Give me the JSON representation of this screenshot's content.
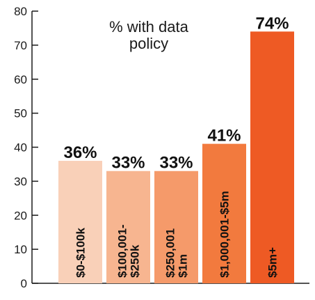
{
  "chart_data": {
    "type": "bar",
    "title_lines": [
      "% with data",
      "policy"
    ],
    "categories": [
      [
        "$0-$100k"
      ],
      [
        "$100,001-",
        "$250k"
      ],
      [
        "$250,001",
        "$1m"
      ],
      [
        "$1,000,001-$5m"
      ],
      [
        "$5m+"
      ]
    ],
    "values": [
      36,
      33,
      33,
      41,
      74
    ],
    "data_labels": [
      "36%",
      "33%",
      "33%",
      "41%",
      "74%"
    ],
    "colors": [
      "#f9d0b8",
      "#f7b590",
      "#f59a6a",
      "#f27a3e",
      "#ee5a24"
    ],
    "ylim": [
      0,
      80
    ],
    "yticks": [
      "0",
      "10",
      "20",
      "30",
      "40",
      "50",
      "60",
      "70",
      "80"
    ],
    "xlabel": "",
    "ylabel": "",
    "grid": false,
    "legend": "none"
  }
}
